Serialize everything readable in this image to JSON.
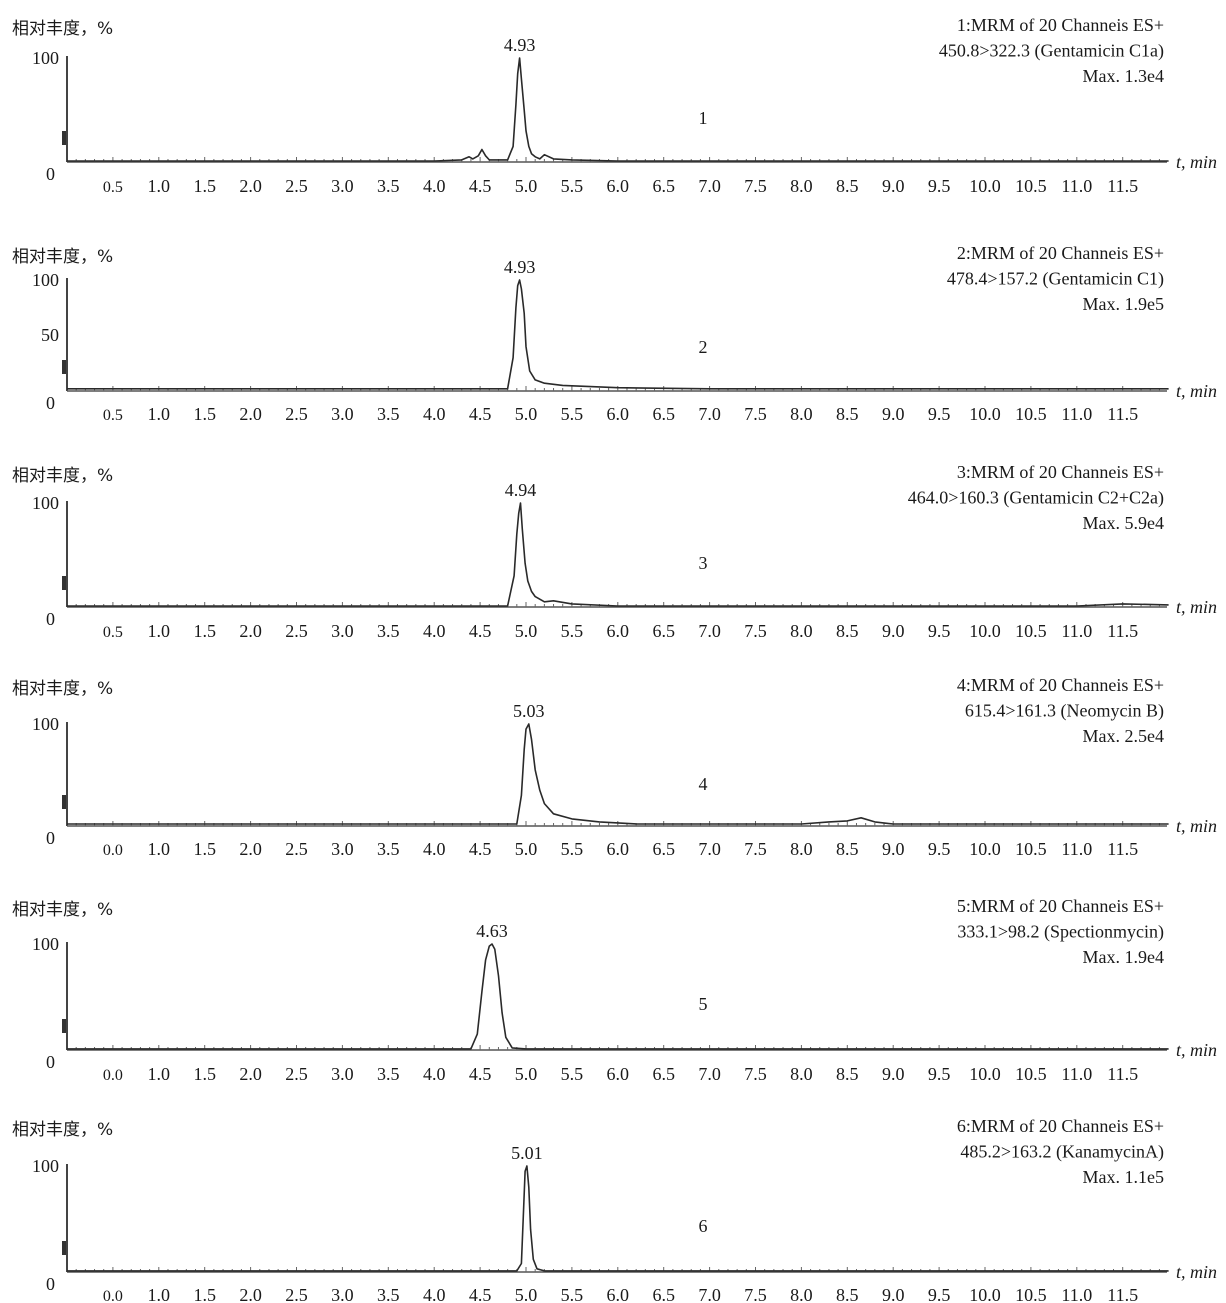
{
  "chart_data": [
    {
      "type": "line",
      "panel_number": "1",
      "ylabel": "相对丰度，%",
      "xlabel": "t, min",
      "title_lines": [
        "1:MRM of 20 Channeis ES+",
        "450.8>322.3 (Gentamicin C1a)",
        "Max. 1.3e4"
      ],
      "y_ticks": [
        "100",
        "0"
      ],
      "x_tick_labels": [
        "0.5",
        "1.0",
        "1.5",
        "2.0",
        "2.5",
        "3.0",
        "3.5",
        "4.0",
        "4.5",
        "5.0",
        "5.5",
        "6.0",
        "6.5",
        "7.0",
        "7.5",
        "8.0",
        "8.5",
        "9.0",
        "9.5",
        "10.0",
        "10.5",
        "11.0",
        "11.5"
      ],
      "xlim": [
        0,
        12
      ],
      "ylim": [
        0,
        100
      ],
      "peak_label": "4.93",
      "series": [
        {
          "x": [
            0,
            0.5,
            1,
            2,
            3,
            4,
            4.3,
            4.38,
            4.42,
            4.48,
            4.52,
            4.56,
            4.6,
            4.8,
            4.86,
            4.89,
            4.91,
            4.93,
            4.95,
            4.98,
            5.0,
            5.03,
            5.06,
            5.1,
            5.15,
            5.2,
            5.3,
            5.5,
            6,
            7,
            8,
            9,
            10,
            11,
            12
          ],
          "y": [
            1,
            1,
            1,
            1,
            1,
            1,
            2,
            5,
            3,
            6,
            12,
            6,
            2,
            2,
            15,
            55,
            85,
            100,
            80,
            50,
            30,
            15,
            8,
            5,
            3,
            7,
            3,
            2,
            1,
            1,
            1,
            1,
            1,
            1,
            1
          ]
        }
      ]
    },
    {
      "type": "line",
      "panel_number": "2",
      "ylabel": "相对丰度，%",
      "xlabel": "t, min",
      "title_lines": [
        "2:MRM of 20 Channeis ES+",
        "478.4>157.2 (Gentamicin C1)",
        "Max. 1.9e5"
      ],
      "y_ticks": [
        "100",
        "50",
        "0"
      ],
      "x_tick_labels": [
        "0.5",
        "1.0",
        "1.5",
        "2.0",
        "2.5",
        "3.0",
        "3.5",
        "4.0",
        "4.5",
        "5.0",
        "5.5",
        "6.0",
        "6.5",
        "7.0",
        "7.5",
        "8.0",
        "8.5",
        "9.0",
        "9.5",
        "10.0",
        "10.5",
        "11.0",
        "11.5"
      ],
      "xlim": [
        0,
        12
      ],
      "ylim": [
        0,
        100
      ],
      "peak_label": "4.93",
      "series": [
        {
          "x": [
            0,
            1,
            2,
            3,
            4,
            4.8,
            4.86,
            4.89,
            4.91,
            4.93,
            4.95,
            4.98,
            5.0,
            5.04,
            5.1,
            5.2,
            5.4,
            5.7,
            6,
            7,
            8,
            9,
            10,
            11,
            12
          ],
          "y": [
            2,
            2,
            2,
            2,
            2,
            2,
            30,
            75,
            95,
            100,
            92,
            70,
            40,
            18,
            10,
            7,
            5,
            4,
            3,
            2,
            2,
            2,
            2,
            2,
            2
          ]
        }
      ]
    },
    {
      "type": "line",
      "panel_number": "3",
      "ylabel": "相对丰度，%",
      "xlabel": "t, min",
      "title_lines": [
        "3:MRM of 20 Channeis ES+",
        "464.0>160.3 (Gentamicin C2+C2a)",
        "Max. 5.9e4"
      ],
      "y_ticks": [
        "100",
        "0"
      ],
      "x_tick_labels": [
        "0.5",
        "1.0",
        "1.5",
        "2.0",
        "2.5",
        "3.0",
        "3.5",
        "4.0",
        "4.5",
        "5.0",
        "5.5",
        "6.0",
        "6.5",
        "7.0",
        "7.5",
        "8.0",
        "8.5",
        "9.0",
        "9.5",
        "10.0",
        "10.5",
        "11.0",
        "11.5"
      ],
      "xlim": [
        0,
        12
      ],
      "ylim": [
        0,
        100
      ],
      "peak_label": "4.94",
      "series": [
        {
          "x": [
            0,
            1,
            2,
            3,
            4,
            4.8,
            4.87,
            4.9,
            4.92,
            4.94,
            4.96,
            4.99,
            5.02,
            5.06,
            5.1,
            5.2,
            5.3,
            5.5,
            6,
            7,
            8,
            9,
            10,
            11,
            11.5,
            12
          ],
          "y": [
            1,
            1,
            1,
            1,
            1,
            1,
            30,
            70,
            90,
            100,
            75,
            42,
            25,
            15,
            10,
            5,
            6,
            3,
            1,
            1,
            1,
            1,
            1,
            1,
            3,
            2
          ]
        }
      ]
    },
    {
      "type": "line",
      "panel_number": "4",
      "ylabel": "相对丰度，%",
      "xlabel": "t, min",
      "title_lines": [
        "4:MRM of 20 Channeis ES+",
        "615.4>161.3 (Neomycin B)",
        "Max. 2.5e4"
      ],
      "y_ticks": [
        "100",
        "0"
      ],
      "x_tick_labels": [
        "0.0",
        "1.0",
        "1.5",
        "2.0",
        "2.5",
        "3.0",
        "3.5",
        "4.0",
        "4.5",
        "5.0",
        "5.5",
        "6.0",
        "6.5",
        "7.0",
        "7.5",
        "8.0",
        "8.5",
        "9.0",
        "9.5",
        "10.0",
        "10.5",
        "11.0",
        "11.5"
      ],
      "xlim": [
        0,
        12
      ],
      "ylim": [
        0,
        100
      ],
      "peak_label": "5.03",
      "series": [
        {
          "x": [
            0,
            1,
            2,
            3,
            4,
            4.9,
            4.95,
            4.98,
            5.0,
            5.03,
            5.06,
            5.1,
            5.15,
            5.2,
            5.3,
            5.5,
            5.8,
            6,
            6.2,
            7,
            8,
            8.3,
            8.5,
            8.65,
            8.8,
            9,
            10,
            11,
            12
          ],
          "y": [
            2,
            2,
            2,
            2,
            2,
            2,
            30,
            75,
            95,
            100,
            85,
            55,
            35,
            22,
            12,
            7,
            4,
            3,
            2,
            2,
            2,
            4,
            5,
            8,
            4,
            2,
            2,
            2,
            2
          ]
        }
      ]
    },
    {
      "type": "line",
      "panel_number": "5",
      "ylabel": "相对丰度，%",
      "xlabel": "t, min",
      "title_lines": [
        "5:MRM of 20 Channeis ES+",
        "333.1>98.2 (Spectionmycin)",
        "Max. 1.9e4"
      ],
      "y_ticks": [
        "100",
        "0"
      ],
      "x_tick_labels": [
        "0.0",
        "1.0",
        "1.5",
        "2.0",
        "2.5",
        "3.0",
        "3.5",
        "4.0",
        "4.5",
        "5.0",
        "5.5",
        "6.0",
        "6.5",
        "7.0",
        "7.5",
        "8.0",
        "8.5",
        "9.0",
        "9.5",
        "10.0",
        "10.5",
        "11.0",
        "11.5"
      ],
      "xlim": [
        0,
        12
      ],
      "ylim": [
        0,
        100
      ],
      "peak_label": "4.63",
      "series": [
        {
          "x": [
            0,
            1,
            2,
            3,
            4,
            4.4,
            4.47,
            4.52,
            4.56,
            4.6,
            4.63,
            4.66,
            4.7,
            4.74,
            4.78,
            4.85,
            5,
            6,
            7,
            8,
            9,
            10,
            11,
            12
          ],
          "y": [
            1,
            1,
            1,
            1,
            1,
            1,
            15,
            55,
            85,
            98,
            100,
            95,
            70,
            35,
            12,
            2,
            1,
            1,
            1,
            1,
            1,
            1,
            1,
            1
          ]
        }
      ]
    },
    {
      "type": "line",
      "panel_number": "6",
      "ylabel": "相对丰度，%",
      "xlabel": "t, min",
      "title_lines": [
        "6:MRM of 20 Channeis ES+",
        "485.2>163.2 (KanamycinA)",
        "Max. 1.1e5"
      ],
      "y_ticks": [
        "100",
        "0"
      ],
      "x_tick_labels": [
        "0.0",
        "1.0",
        "1.5",
        "2.0",
        "2.5",
        "3.0",
        "3.5",
        "4.0",
        "4.5",
        "5.0",
        "5.5",
        "6.0",
        "6.5",
        "7.0",
        "7.5",
        "8.0",
        "8.5",
        "9.0",
        "9.5",
        "10.0",
        "10.5",
        "11.0",
        "11.5"
      ],
      "xlim": [
        0,
        12
      ],
      "ylim": [
        0,
        100
      ],
      "peak_label": "5.01",
      "series": [
        {
          "x": [
            0,
            1,
            2,
            3,
            4,
            4.9,
            4.95,
            4.97,
            4.99,
            5.01,
            5.03,
            5.05,
            5.08,
            5.12,
            5.2,
            6,
            7,
            8,
            9,
            10,
            11,
            12
          ],
          "y": [
            1,
            1,
            1,
            1,
            1,
            1,
            8,
            50,
            95,
            100,
            80,
            40,
            12,
            3,
            1,
            1,
            1,
            1,
            1,
            1,
            1,
            1
          ]
        }
      ]
    }
  ]
}
